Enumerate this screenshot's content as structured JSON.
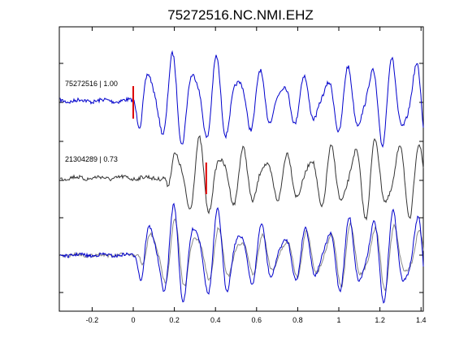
{
  "chart_data": {
    "type": "line",
    "title": "75272516.NC.NMI.EHZ",
    "xlabel": "",
    "ylabel": "",
    "xlim": [
      -0.35,
      1.4
    ],
    "x_ticks": [
      -0.2,
      0,
      0.2,
      0.4,
      0.6,
      0.8,
      1,
      1.2,
      1.4
    ],
    "x_tick_labels": [
      "-0.2",
      "0",
      "0.2",
      "0.4",
      "0.6",
      "0.8",
      "1",
      "1.2",
      "1.4"
    ],
    "grid": false,
    "colors": {
      "template": "#0000cc",
      "match": "#333333",
      "overlay_match": "#888888",
      "pick": "#dd0000",
      "axes": "#000000"
    },
    "traces": [
      {
        "label": "75272516 | 1.00",
        "pick_time": 0.0
      },
      {
        "label": "21304289 | 0.73",
        "pick_time": 0.355
      }
    ]
  }
}
